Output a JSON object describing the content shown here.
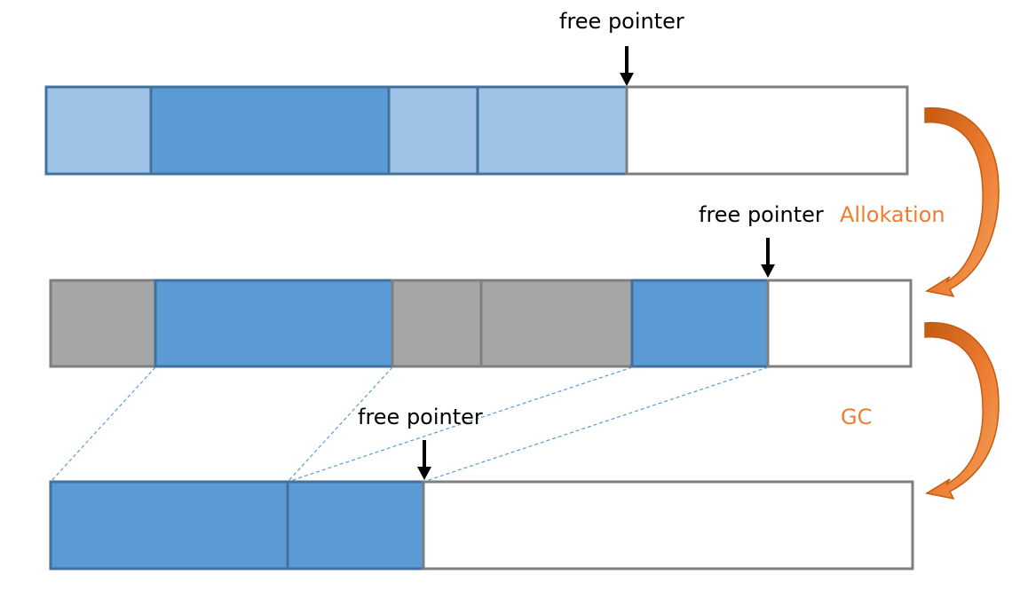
{
  "labels": {
    "free_pointer_1": "free pointer",
    "free_pointer_2": "free pointer",
    "free_pointer_3": "free pointer",
    "allocation": "Allokation",
    "gc": "GC"
  },
  "colors": {
    "light_blue": "#9fc3e6",
    "blue": "#5b9bd5",
    "gray": "#a6a6a6",
    "empty": "#ffffff",
    "block_border": "#41719c",
    "gray_border": "#7f7f7f",
    "accent": "#ed7d31",
    "accent_dark": "#c55a11",
    "dashed_line": "#5b9bd5"
  }
}
